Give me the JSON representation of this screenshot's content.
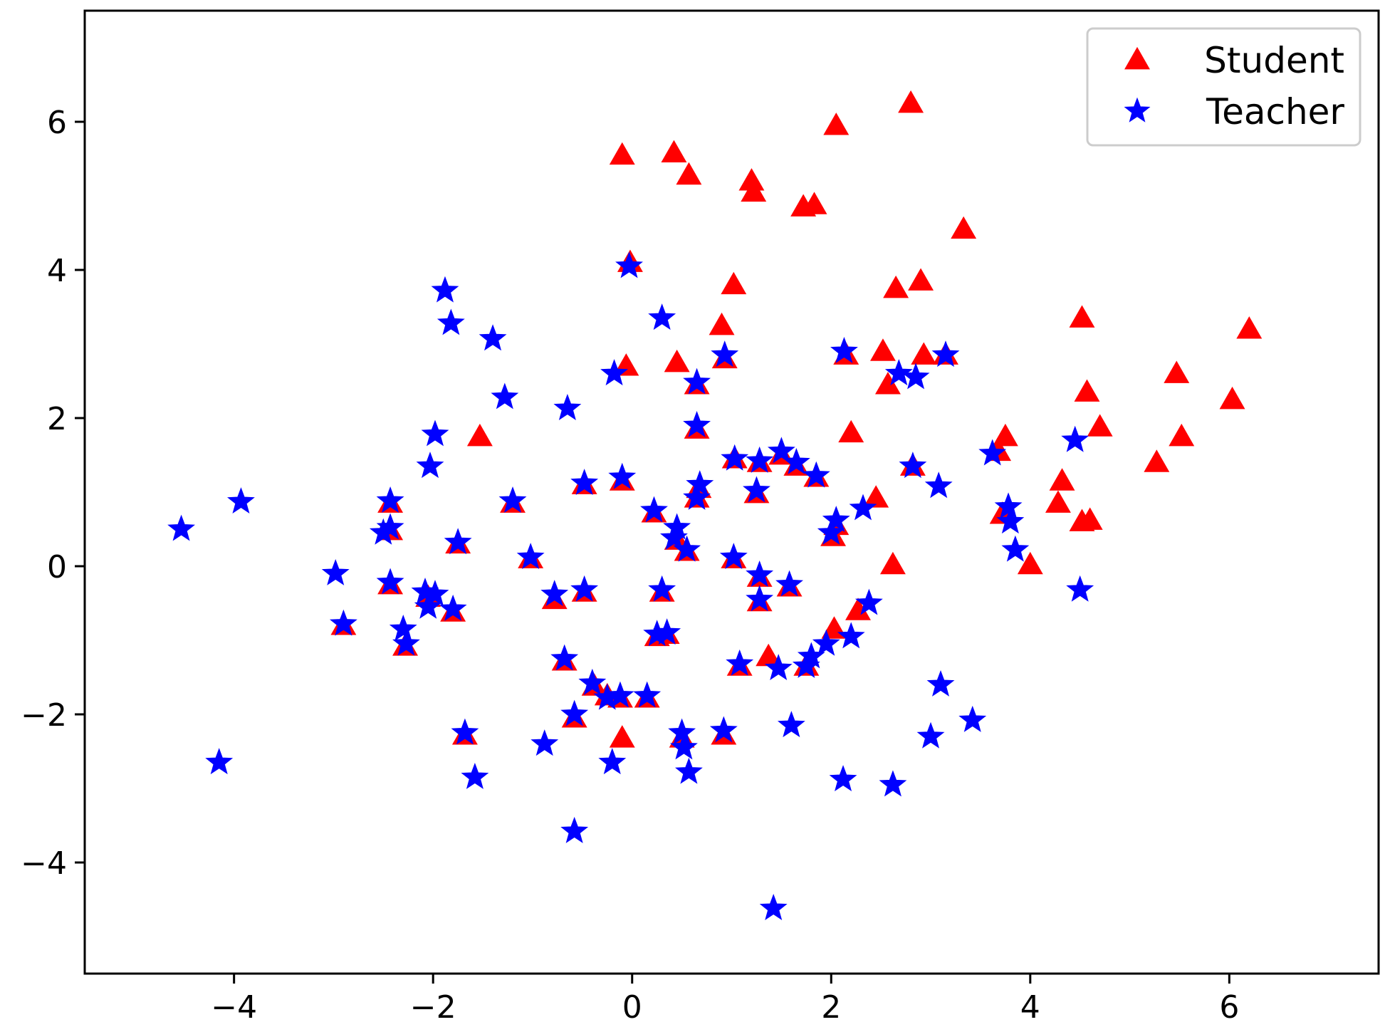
{
  "chart_data": {
    "type": "scatter",
    "title": "",
    "xlabel": "",
    "ylabel": "",
    "xlim": [
      -5.5,
      7.5
    ],
    "ylim": [
      -5.5,
      7.5
    ],
    "x_ticks": [
      -4,
      -2,
      0,
      2,
      4,
      6
    ],
    "y_ticks": [
      -4,
      -2,
      0,
      2,
      4,
      6
    ],
    "x_tick_labels": [
      "−4",
      "−2",
      "0",
      "2",
      "4",
      "6"
    ],
    "y_tick_labels": [
      "−4",
      "−2",
      "0",
      "2",
      "4",
      "6"
    ],
    "grid": false,
    "legend_position": "top-right",
    "series": [
      {
        "name": "Student",
        "marker": "triangle",
        "color": "#ff0000",
        "points": [
          [
            -0.1,
            5.55
          ],
          [
            0.42,
            5.58
          ],
          [
            0.57,
            5.28
          ],
          [
            1.2,
            5.2
          ],
          [
            1.22,
            5.05
          ],
          [
            1.72,
            4.85
          ],
          [
            1.83,
            4.88
          ],
          [
            2.05,
            5.95
          ],
          [
            2.8,
            6.25
          ],
          [
            3.33,
            4.55
          ],
          [
            -0.02,
            4.1
          ],
          [
            1.02,
            3.8
          ],
          [
            0.9,
            3.25
          ],
          [
            2.65,
            3.75
          ],
          [
            2.9,
            3.85
          ],
          [
            4.52,
            3.35
          ],
          [
            6.2,
            3.2
          ],
          [
            -0.06,
            2.7
          ],
          [
            0.45,
            2.75
          ],
          [
            0.93,
            2.8
          ],
          [
            2.15,
            2.85
          ],
          [
            2.52,
            2.9
          ],
          [
            2.57,
            2.45
          ],
          [
            2.93,
            2.85
          ],
          [
            3.15,
            2.85
          ],
          [
            5.47,
            2.6
          ],
          [
            4.57,
            2.35
          ],
          [
            6.03,
            2.25
          ],
          [
            0.65,
            2.45
          ],
          [
            2.2,
            1.8
          ],
          [
            4.7,
            1.88
          ],
          [
            3.75,
            1.75
          ],
          [
            5.52,
            1.75
          ],
          [
            -1.53,
            1.75
          ],
          [
            0.65,
            1.85
          ],
          [
            3.68,
            1.55
          ],
          [
            5.27,
            1.4
          ],
          [
            1.03,
            1.45
          ],
          [
            1.28,
            1.4
          ],
          [
            1.5,
            1.5
          ],
          [
            1.65,
            1.35
          ],
          [
            1.85,
            1.2
          ],
          [
            2.82,
            1.35
          ],
          [
            4.32,
            1.15
          ],
          [
            -0.1,
            1.15
          ],
          [
            -0.48,
            1.1
          ],
          [
            0.67,
            1.05
          ],
          [
            1.25,
            0.98
          ],
          [
            0.65,
            0.92
          ],
          [
            2.45,
            0.92
          ],
          [
            4.28,
            0.85
          ],
          [
            -2.43,
            0.85
          ],
          [
            -1.2,
            0.85
          ],
          [
            0.22,
            0.72
          ],
          [
            3.72,
            0.7
          ],
          [
            4.52,
            0.6
          ],
          [
            4.6,
            0.62
          ],
          [
            -2.43,
            0.48
          ],
          [
            0.45,
            0.35
          ],
          [
            0.55,
            0.2
          ],
          [
            2.02,
            0.4
          ],
          [
            2.05,
            0.55
          ],
          [
            -1.75,
            0.3
          ],
          [
            -1.02,
            0.1
          ],
          [
            1.02,
            0.1
          ],
          [
            2.62,
            0.02
          ],
          [
            4.0,
            0.02
          ],
          [
            1.28,
            -0.15
          ],
          [
            1.58,
            -0.28
          ],
          [
            -2.43,
            -0.25
          ],
          [
            -0.48,
            -0.35
          ],
          [
            0.3,
            -0.35
          ],
          [
            -2.05,
            -0.42
          ],
          [
            -0.78,
            -0.45
          ],
          [
            1.28,
            -0.48
          ],
          [
            2.27,
            -0.6
          ],
          [
            -1.8,
            -0.62
          ],
          [
            -2.9,
            -0.8
          ],
          [
            2.03,
            -0.85
          ],
          [
            0.25,
            -0.95
          ],
          [
            0.35,
            -0.92
          ],
          [
            -2.28,
            -1.08
          ],
          [
            -0.68,
            -1.28
          ],
          [
            1.37,
            -1.22
          ],
          [
            1.08,
            -1.35
          ],
          [
            1.75,
            -1.35
          ],
          [
            -0.38,
            -1.62
          ],
          [
            -0.25,
            -1.75
          ],
          [
            -0.12,
            -1.78
          ],
          [
            0.15,
            -1.78
          ],
          [
            -0.58,
            -2.05
          ],
          [
            -1.68,
            -2.28
          ],
          [
            0.5,
            -2.32
          ],
          [
            0.92,
            -2.28
          ],
          [
            -0.1,
            -2.32
          ]
        ]
      },
      {
        "name": "Teacher",
        "marker": "star",
        "color": "#0000ff",
        "points": [
          [
            -0.03,
            4.05
          ],
          [
            -1.88,
            3.72
          ],
          [
            -1.82,
            3.28
          ],
          [
            -1.4,
            3.07
          ],
          [
            0.3,
            3.35
          ],
          [
            -0.18,
            2.6
          ],
          [
            0.93,
            2.85
          ],
          [
            2.13,
            2.9
          ],
          [
            3.15,
            2.85
          ],
          [
            2.68,
            2.6
          ],
          [
            2.85,
            2.55
          ],
          [
            0.65,
            2.48
          ],
          [
            -1.28,
            2.28
          ],
          [
            -0.65,
            2.13
          ],
          [
            0.65,
            1.9
          ],
          [
            -1.98,
            1.78
          ],
          [
            4.45,
            1.7
          ],
          [
            3.62,
            1.52
          ],
          [
            -2.03,
            1.35
          ],
          [
            1.5,
            1.55
          ],
          [
            1.65,
            1.4
          ],
          [
            1.85,
            1.22
          ],
          [
            1.28,
            1.42
          ],
          [
            1.03,
            1.45
          ],
          [
            2.82,
            1.35
          ],
          [
            -0.1,
            1.2
          ],
          [
            -0.48,
            1.12
          ],
          [
            3.08,
            1.08
          ],
          [
            0.68,
            1.1
          ],
          [
            1.25,
            1.02
          ],
          [
            0.65,
            0.92
          ],
          [
            -2.43,
            0.88
          ],
          [
            -1.2,
            0.88
          ],
          [
            -3.93,
            0.87
          ],
          [
            2.32,
            0.78
          ],
          [
            3.78,
            0.8
          ],
          [
            0.22,
            0.75
          ],
          [
            2.05,
            0.62
          ],
          [
            3.8,
            0.6
          ],
          [
            0.45,
            0.52
          ],
          [
            -4.53,
            0.5
          ],
          [
            -2.5,
            0.45
          ],
          [
            -2.43,
            0.52
          ],
          [
            0.42,
            0.38
          ],
          [
            2.0,
            0.45
          ],
          [
            -1.75,
            0.32
          ],
          [
            0.55,
            0.22
          ],
          [
            3.85,
            0.22
          ],
          [
            -1.02,
            0.12
          ],
          [
            1.02,
            0.12
          ],
          [
            -2.98,
            -0.1
          ],
          [
            1.28,
            -0.12
          ],
          [
            -2.43,
            -0.22
          ],
          [
            1.58,
            -0.25
          ],
          [
            -2.08,
            -0.35
          ],
          [
            -1.98,
            -0.38
          ],
          [
            -0.48,
            -0.32
          ],
          [
            0.3,
            -0.32
          ],
          [
            4.5,
            -0.32
          ],
          [
            -0.78,
            -0.38
          ],
          [
            1.28,
            -0.45
          ],
          [
            -2.05,
            -0.55
          ],
          [
            2.38,
            -0.5
          ],
          [
            -1.8,
            -0.58
          ],
          [
            -2.9,
            -0.78
          ],
          [
            -2.3,
            -0.85
          ],
          [
            0.25,
            -0.92
          ],
          [
            0.35,
            -0.9
          ],
          [
            2.2,
            -0.95
          ],
          [
            1.95,
            -1.05
          ],
          [
            -2.27,
            -1.05
          ],
          [
            -0.68,
            -1.25
          ],
          [
            1.8,
            -1.22
          ],
          [
            1.08,
            -1.32
          ],
          [
            1.47,
            -1.38
          ],
          [
            1.75,
            -1.35
          ],
          [
            -0.4,
            -1.58
          ],
          [
            3.1,
            -1.6
          ],
          [
            -0.25,
            -1.78
          ],
          [
            -0.12,
            -1.75
          ],
          [
            0.15,
            -1.75
          ],
          [
            3.42,
            -2.08
          ],
          [
            -0.58,
            -2.0
          ],
          [
            1.6,
            -2.15
          ],
          [
            -1.68,
            -2.25
          ],
          [
            0.5,
            -2.25
          ],
          [
            0.92,
            -2.22
          ],
          [
            -0.88,
            -2.4
          ],
          [
            0.52,
            -2.45
          ],
          [
            3.0,
            -2.3
          ],
          [
            -4.15,
            -2.65
          ],
          [
            -0.2,
            -2.65
          ],
          [
            0.57,
            -2.78
          ],
          [
            -1.58,
            -2.85
          ],
          [
            2.12,
            -2.88
          ],
          [
            2.62,
            -2.95
          ],
          [
            -0.58,
            -3.58
          ],
          [
            1.42,
            -4.62
          ]
        ]
      }
    ]
  }
}
